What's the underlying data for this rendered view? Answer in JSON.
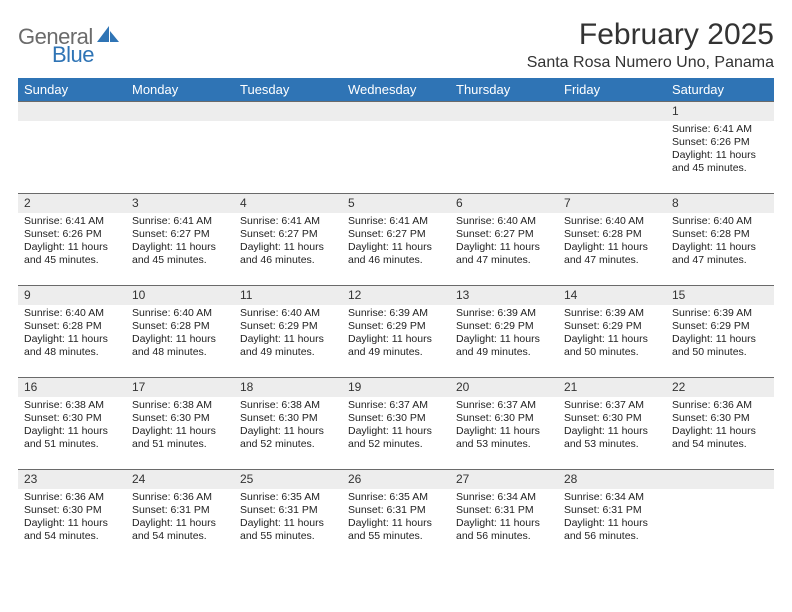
{
  "logo": {
    "word1": "General",
    "word2": "Blue"
  },
  "title": "February 2025",
  "location": "Santa Rosa Numero Uno, Panama",
  "colors": {
    "header_bg": "#2f74b5",
    "header_fg": "#ffffff",
    "daynum_bg": "#ededed",
    "rule": "#6a6a6a",
    "page_bg": "#ffffff",
    "logo_gray": "#6b6b6b",
    "logo_blue": "#2f74b5"
  },
  "day_labels": [
    "Sunday",
    "Monday",
    "Tuesday",
    "Wednesday",
    "Thursday",
    "Friday",
    "Saturday"
  ],
  "weeks": [
    [
      {
        "n": "",
        "empty": true
      },
      {
        "n": "",
        "empty": true
      },
      {
        "n": "",
        "empty": true
      },
      {
        "n": "",
        "empty": true
      },
      {
        "n": "",
        "empty": true
      },
      {
        "n": "",
        "empty": true
      },
      {
        "n": "1",
        "sunrise": "6:41 AM",
        "sunset": "6:26 PM",
        "daylight": "11 hours and 45 minutes."
      }
    ],
    [
      {
        "n": "2",
        "sunrise": "6:41 AM",
        "sunset": "6:26 PM",
        "daylight": "11 hours and 45 minutes."
      },
      {
        "n": "3",
        "sunrise": "6:41 AM",
        "sunset": "6:27 PM",
        "daylight": "11 hours and 45 minutes."
      },
      {
        "n": "4",
        "sunrise": "6:41 AM",
        "sunset": "6:27 PM",
        "daylight": "11 hours and 46 minutes."
      },
      {
        "n": "5",
        "sunrise": "6:41 AM",
        "sunset": "6:27 PM",
        "daylight": "11 hours and 46 minutes."
      },
      {
        "n": "6",
        "sunrise": "6:40 AM",
        "sunset": "6:27 PM",
        "daylight": "11 hours and 47 minutes."
      },
      {
        "n": "7",
        "sunrise": "6:40 AM",
        "sunset": "6:28 PM",
        "daylight": "11 hours and 47 minutes."
      },
      {
        "n": "8",
        "sunrise": "6:40 AM",
        "sunset": "6:28 PM",
        "daylight": "11 hours and 47 minutes."
      }
    ],
    [
      {
        "n": "9",
        "sunrise": "6:40 AM",
        "sunset": "6:28 PM",
        "daylight": "11 hours and 48 minutes."
      },
      {
        "n": "10",
        "sunrise": "6:40 AM",
        "sunset": "6:28 PM",
        "daylight": "11 hours and 48 minutes."
      },
      {
        "n": "11",
        "sunrise": "6:40 AM",
        "sunset": "6:29 PM",
        "daylight": "11 hours and 49 minutes."
      },
      {
        "n": "12",
        "sunrise": "6:39 AM",
        "sunset": "6:29 PM",
        "daylight": "11 hours and 49 minutes."
      },
      {
        "n": "13",
        "sunrise": "6:39 AM",
        "sunset": "6:29 PM",
        "daylight": "11 hours and 49 minutes."
      },
      {
        "n": "14",
        "sunrise": "6:39 AM",
        "sunset": "6:29 PM",
        "daylight": "11 hours and 50 minutes."
      },
      {
        "n": "15",
        "sunrise": "6:39 AM",
        "sunset": "6:29 PM",
        "daylight": "11 hours and 50 minutes."
      }
    ],
    [
      {
        "n": "16",
        "sunrise": "6:38 AM",
        "sunset": "6:30 PM",
        "daylight": "11 hours and 51 minutes."
      },
      {
        "n": "17",
        "sunrise": "6:38 AM",
        "sunset": "6:30 PM",
        "daylight": "11 hours and 51 minutes."
      },
      {
        "n": "18",
        "sunrise": "6:38 AM",
        "sunset": "6:30 PM",
        "daylight": "11 hours and 52 minutes."
      },
      {
        "n": "19",
        "sunrise": "6:37 AM",
        "sunset": "6:30 PM",
        "daylight": "11 hours and 52 minutes."
      },
      {
        "n": "20",
        "sunrise": "6:37 AM",
        "sunset": "6:30 PM",
        "daylight": "11 hours and 53 minutes."
      },
      {
        "n": "21",
        "sunrise": "6:37 AM",
        "sunset": "6:30 PM",
        "daylight": "11 hours and 53 minutes."
      },
      {
        "n": "22",
        "sunrise": "6:36 AM",
        "sunset": "6:30 PM",
        "daylight": "11 hours and 54 minutes."
      }
    ],
    [
      {
        "n": "23",
        "sunrise": "6:36 AM",
        "sunset": "6:30 PM",
        "daylight": "11 hours and 54 minutes."
      },
      {
        "n": "24",
        "sunrise": "6:36 AM",
        "sunset": "6:31 PM",
        "daylight": "11 hours and 54 minutes."
      },
      {
        "n": "25",
        "sunrise": "6:35 AM",
        "sunset": "6:31 PM",
        "daylight": "11 hours and 55 minutes."
      },
      {
        "n": "26",
        "sunrise": "6:35 AM",
        "sunset": "6:31 PM",
        "daylight": "11 hours and 55 minutes."
      },
      {
        "n": "27",
        "sunrise": "6:34 AM",
        "sunset": "6:31 PM",
        "daylight": "11 hours and 56 minutes."
      },
      {
        "n": "28",
        "sunrise": "6:34 AM",
        "sunset": "6:31 PM",
        "daylight": "11 hours and 56 minutes."
      },
      {
        "n": "",
        "empty": true
      }
    ]
  ],
  "labels": {
    "sunrise": "Sunrise: ",
    "sunset": "Sunset: ",
    "daylight": "Daylight: "
  }
}
